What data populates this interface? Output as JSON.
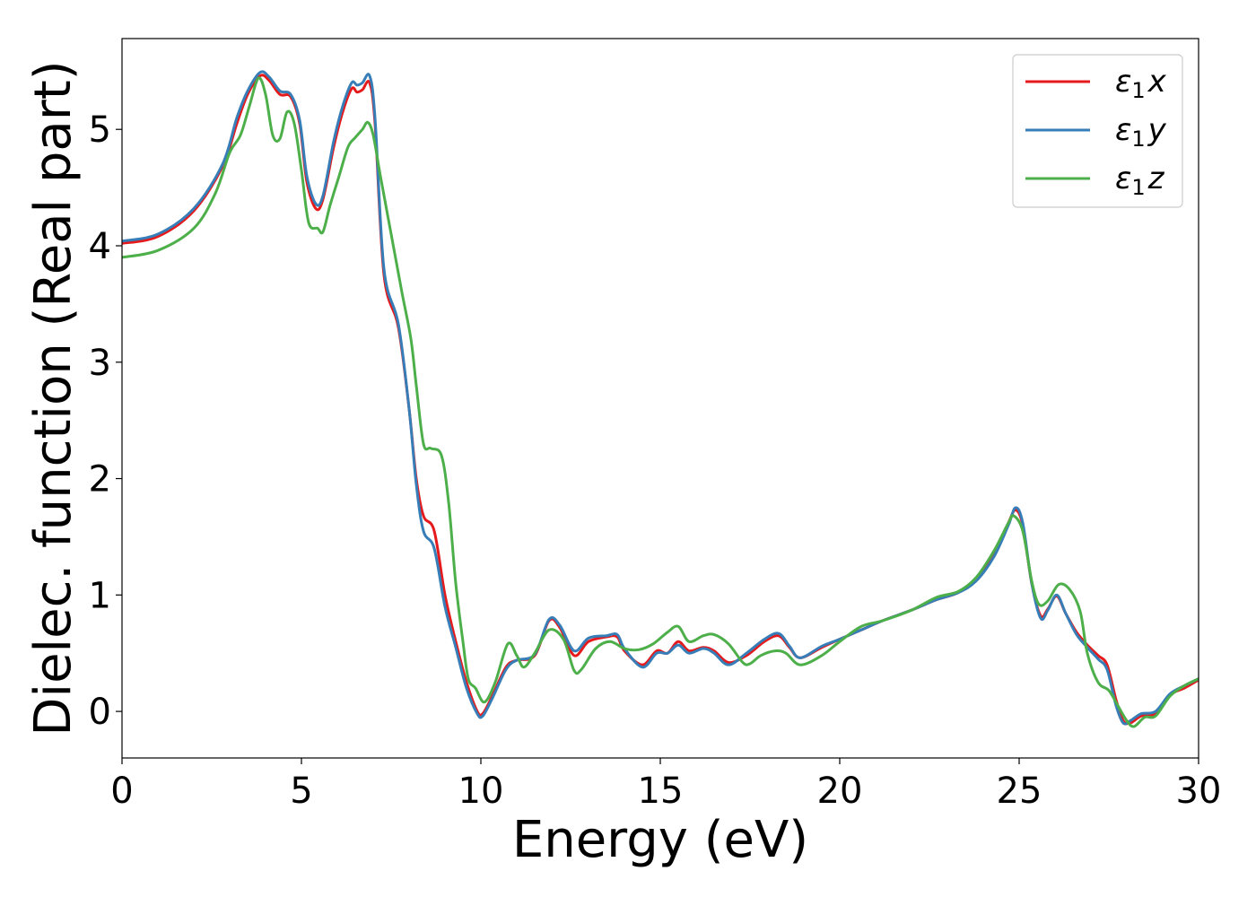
{
  "chart_data": {
    "type": "line",
    "title": "",
    "xlabel": "Energy (eV)",
    "ylabel": "Dielec. function (Real part)",
    "xlim": [
      0,
      30
    ],
    "ylim": [
      -0.4,
      5.78
    ],
    "xticks": [
      0,
      5,
      10,
      15,
      20,
      25,
      30
    ],
    "yticks": [
      0,
      1,
      2,
      3,
      4,
      5
    ],
    "grid": false,
    "legend_position": "top-right",
    "series": [
      {
        "name": "ε₁x",
        "legend_main": "ε",
        "legend_sub": "1",
        "legend_var": "x",
        "color": "#e41a1c",
        "points": [
          [
            0,
            4.02
          ],
          [
            1,
            4.08
          ],
          [
            2,
            4.3
          ],
          [
            2.8,
            4.68
          ],
          [
            3.2,
            5.05
          ],
          [
            3.5,
            5.3
          ],
          [
            3.85,
            5.46
          ],
          [
            4.1,
            5.42
          ],
          [
            4.4,
            5.3
          ],
          [
            4.7,
            5.28
          ],
          [
            4.95,
            5.05
          ],
          [
            5.15,
            4.55
          ],
          [
            5.4,
            4.32
          ],
          [
            5.6,
            4.4
          ],
          [
            5.9,
            4.85
          ],
          [
            6.15,
            5.15
          ],
          [
            6.4,
            5.35
          ],
          [
            6.55,
            5.32
          ],
          [
            6.7,
            5.34
          ],
          [
            6.9,
            5.4
          ],
          [
            7.05,
            5.05
          ],
          [
            7.3,
            3.75
          ],
          [
            7.7,
            3.3
          ],
          [
            8.0,
            2.6
          ],
          [
            8.2,
            2.0
          ],
          [
            8.4,
            1.68
          ],
          [
            8.7,
            1.55
          ],
          [
            9.0,
            1.0
          ],
          [
            9.3,
            0.6
          ],
          [
            9.6,
            0.25
          ],
          [
            9.9,
            0.0
          ],
          [
            10.05,
            -0.02
          ],
          [
            10.3,
            0.12
          ],
          [
            10.7,
            0.38
          ],
          [
            11.0,
            0.44
          ],
          [
            11.5,
            0.48
          ],
          [
            11.9,
            0.78
          ],
          [
            12.2,
            0.72
          ],
          [
            12.6,
            0.48
          ],
          [
            13.0,
            0.6
          ],
          [
            13.5,
            0.64
          ],
          [
            13.8,
            0.64
          ],
          [
            14.0,
            0.52
          ],
          [
            14.5,
            0.4
          ],
          [
            14.9,
            0.52
          ],
          [
            15.2,
            0.5
          ],
          [
            15.5,
            0.6
          ],
          [
            15.8,
            0.52
          ],
          [
            16.2,
            0.55
          ],
          [
            16.5,
            0.52
          ],
          [
            16.9,
            0.42
          ],
          [
            17.4,
            0.48
          ],
          [
            17.9,
            0.6
          ],
          [
            18.3,
            0.65
          ],
          [
            18.6,
            0.55
          ],
          [
            18.9,
            0.46
          ],
          [
            19.5,
            0.55
          ],
          [
            20.0,
            0.62
          ],
          [
            20.6,
            0.7
          ],
          [
            21.2,
            0.78
          ],
          [
            22.0,
            0.87
          ],
          [
            22.7,
            0.96
          ],
          [
            23.3,
            1.02
          ],
          [
            23.8,
            1.14
          ],
          [
            24.3,
            1.35
          ],
          [
            24.7,
            1.62
          ],
          [
            24.9,
            1.73
          ],
          [
            25.1,
            1.6
          ],
          [
            25.35,
            1.1
          ],
          [
            25.6,
            0.82
          ],
          [
            25.8,
            0.88
          ],
          [
            26.05,
            0.99
          ],
          [
            26.3,
            0.84
          ],
          [
            26.6,
            0.68
          ],
          [
            26.9,
            0.57
          ],
          [
            27.2,
            0.48
          ],
          [
            27.45,
            0.4
          ],
          [
            27.7,
            0.1
          ],
          [
            27.9,
            -0.08
          ],
          [
            28.1,
            -0.1
          ],
          [
            28.4,
            -0.04
          ],
          [
            28.8,
            -0.02
          ],
          [
            29.2,
            0.14
          ],
          [
            29.6,
            0.2
          ],
          [
            30.0,
            0.27
          ]
        ]
      },
      {
        "name": "ε₁y",
        "legend_main": "ε",
        "legend_sub": "1",
        "legend_var": "y",
        "color": "#377eb8",
        "points": [
          [
            0,
            4.04
          ],
          [
            1,
            4.1
          ],
          [
            2,
            4.32
          ],
          [
            2.8,
            4.7
          ],
          [
            3.2,
            5.1
          ],
          [
            3.5,
            5.33
          ],
          [
            3.85,
            5.49
          ],
          [
            4.1,
            5.45
          ],
          [
            4.4,
            5.33
          ],
          [
            4.7,
            5.3
          ],
          [
            4.95,
            5.08
          ],
          [
            5.15,
            4.6
          ],
          [
            5.4,
            4.36
          ],
          [
            5.6,
            4.43
          ],
          [
            5.9,
            4.9
          ],
          [
            6.15,
            5.2
          ],
          [
            6.4,
            5.4
          ],
          [
            6.55,
            5.38
          ],
          [
            6.7,
            5.4
          ],
          [
            6.9,
            5.46
          ],
          [
            7.05,
            5.1
          ],
          [
            7.3,
            3.8
          ],
          [
            7.7,
            3.33
          ],
          [
            8.0,
            2.6
          ],
          [
            8.2,
            1.95
          ],
          [
            8.4,
            1.55
          ],
          [
            8.7,
            1.4
          ],
          [
            9.0,
            0.9
          ],
          [
            9.3,
            0.55
          ],
          [
            9.6,
            0.2
          ],
          [
            9.9,
            -0.02
          ],
          [
            10.05,
            -0.04
          ],
          [
            10.3,
            0.1
          ],
          [
            10.7,
            0.36
          ],
          [
            11.0,
            0.44
          ],
          [
            11.5,
            0.49
          ],
          [
            11.9,
            0.79
          ],
          [
            12.2,
            0.74
          ],
          [
            12.6,
            0.52
          ],
          [
            13.0,
            0.63
          ],
          [
            13.5,
            0.65
          ],
          [
            13.8,
            0.66
          ],
          [
            14.0,
            0.54
          ],
          [
            14.5,
            0.38
          ],
          [
            14.9,
            0.5
          ],
          [
            15.2,
            0.5
          ],
          [
            15.5,
            0.57
          ],
          [
            15.8,
            0.5
          ],
          [
            16.2,
            0.54
          ],
          [
            16.5,
            0.5
          ],
          [
            16.9,
            0.4
          ],
          [
            17.4,
            0.5
          ],
          [
            17.9,
            0.62
          ],
          [
            18.3,
            0.67
          ],
          [
            18.6,
            0.56
          ],
          [
            18.9,
            0.46
          ],
          [
            19.5,
            0.56
          ],
          [
            20.0,
            0.62
          ],
          [
            20.6,
            0.7
          ],
          [
            21.2,
            0.78
          ],
          [
            22.0,
            0.87
          ],
          [
            22.7,
            0.96
          ],
          [
            23.3,
            1.02
          ],
          [
            23.8,
            1.12
          ],
          [
            24.3,
            1.33
          ],
          [
            24.7,
            1.6
          ],
          [
            24.9,
            1.75
          ],
          [
            25.1,
            1.62
          ],
          [
            25.35,
            1.1
          ],
          [
            25.6,
            0.8
          ],
          [
            25.8,
            0.87
          ],
          [
            26.05,
            1.0
          ],
          [
            26.3,
            0.84
          ],
          [
            26.6,
            0.66
          ],
          [
            26.9,
            0.55
          ],
          [
            27.2,
            0.45
          ],
          [
            27.45,
            0.36
          ],
          [
            27.7,
            0.05
          ],
          [
            27.9,
            -0.1
          ],
          [
            28.1,
            -0.08
          ],
          [
            28.4,
            -0.02
          ],
          [
            28.8,
            0.0
          ],
          [
            29.2,
            0.15
          ],
          [
            29.6,
            0.22
          ],
          [
            30.0,
            0.28
          ]
        ]
      },
      {
        "name": "ε₁z",
        "legend_main": "ε",
        "legend_sub": "1",
        "legend_var": "z",
        "color": "#4daf4a",
        "points": [
          [
            0,
            3.9
          ],
          [
            1,
            3.96
          ],
          [
            2,
            4.15
          ],
          [
            2.6,
            4.45
          ],
          [
            3.0,
            4.8
          ],
          [
            3.3,
            4.95
          ],
          [
            3.55,
            5.2
          ],
          [
            3.8,
            5.44
          ],
          [
            4.0,
            5.3
          ],
          [
            4.2,
            4.95
          ],
          [
            4.4,
            4.92
          ],
          [
            4.6,
            5.15
          ],
          [
            4.8,
            5.05
          ],
          [
            5.0,
            4.65
          ],
          [
            5.2,
            4.2
          ],
          [
            5.45,
            4.15
          ],
          [
            5.6,
            4.12
          ],
          [
            5.8,
            4.35
          ],
          [
            6.05,
            4.6
          ],
          [
            6.3,
            4.85
          ],
          [
            6.5,
            4.93
          ],
          [
            6.7,
            5.0
          ],
          [
            6.85,
            5.06
          ],
          [
            7.0,
            4.95
          ],
          [
            7.2,
            4.6
          ],
          [
            7.5,
            4.1
          ],
          [
            7.8,
            3.6
          ],
          [
            8.05,
            3.2
          ],
          [
            8.2,
            2.8
          ],
          [
            8.4,
            2.3
          ],
          [
            8.6,
            2.26
          ],
          [
            8.9,
            2.2
          ],
          [
            9.1,
            1.8
          ],
          [
            9.3,
            1.1
          ],
          [
            9.5,
            0.6
          ],
          [
            9.65,
            0.28
          ],
          [
            9.85,
            0.2
          ],
          [
            10.1,
            0.08
          ],
          [
            10.4,
            0.25
          ],
          [
            10.75,
            0.58
          ],
          [
            11.0,
            0.48
          ],
          [
            11.2,
            0.38
          ],
          [
            11.5,
            0.5
          ],
          [
            11.9,
            0.7
          ],
          [
            12.3,
            0.62
          ],
          [
            12.6,
            0.35
          ],
          [
            12.8,
            0.36
          ],
          [
            13.2,
            0.54
          ],
          [
            13.6,
            0.6
          ],
          [
            14.0,
            0.54
          ],
          [
            14.4,
            0.53
          ],
          [
            14.8,
            0.58
          ],
          [
            15.2,
            0.68
          ],
          [
            15.5,
            0.73
          ],
          [
            15.8,
            0.6
          ],
          [
            16.2,
            0.65
          ],
          [
            16.5,
            0.66
          ],
          [
            16.9,
            0.58
          ],
          [
            17.3,
            0.42
          ],
          [
            17.5,
            0.41
          ],
          [
            17.8,
            0.48
          ],
          [
            18.2,
            0.52
          ],
          [
            18.5,
            0.5
          ],
          [
            18.9,
            0.4
          ],
          [
            19.5,
            0.48
          ],
          [
            20.0,
            0.6
          ],
          [
            20.6,
            0.73
          ],
          [
            21.2,
            0.78
          ],
          [
            22.0,
            0.87
          ],
          [
            22.7,
            0.98
          ],
          [
            23.3,
            1.03
          ],
          [
            23.8,
            1.15
          ],
          [
            24.3,
            1.38
          ],
          [
            24.7,
            1.62
          ],
          [
            24.85,
            1.68
          ],
          [
            25.1,
            1.55
          ],
          [
            25.35,
            1.12
          ],
          [
            25.55,
            0.92
          ],
          [
            25.8,
            0.95
          ],
          [
            26.1,
            1.09
          ],
          [
            26.4,
            1.05
          ],
          [
            26.7,
            0.86
          ],
          [
            26.9,
            0.5
          ],
          [
            27.2,
            0.25
          ],
          [
            27.5,
            0.18
          ],
          [
            27.75,
            0.05
          ],
          [
            28.0,
            -0.08
          ],
          [
            28.2,
            -0.13
          ],
          [
            28.5,
            -0.05
          ],
          [
            28.8,
            -0.04
          ],
          [
            29.2,
            0.13
          ],
          [
            29.6,
            0.22
          ],
          [
            30.0,
            0.28
          ]
        ]
      }
    ]
  }
}
